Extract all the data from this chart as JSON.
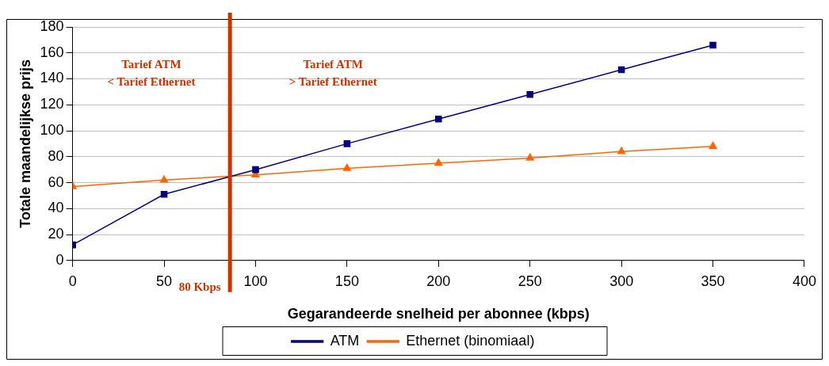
{
  "chart_data": {
    "type": "line",
    "xlabel": "Gegarandeerde snelheid per abonnee (kbps)",
    "ylabel": "Totale maandelijkse prijs",
    "x": [
      0,
      50,
      100,
      150,
      200,
      250,
      300,
      350
    ],
    "series": [
      {
        "name": "ATM",
        "color": "#000080",
        "marker": "square",
        "values": [
          12,
          51,
          70,
          90,
          109,
          128,
          147,
          166
        ]
      },
      {
        "name": "Ethernet (binomiaal)",
        "color": "#ff6600",
        "marker": "triangle",
        "values": [
          57,
          62,
          66,
          71,
          75,
          79,
          84,
          88
        ]
      }
    ],
    "xlim": [
      0,
      400
    ],
    "xticks": [
      0,
      50,
      100,
      150,
      200,
      250,
      300,
      350,
      400
    ],
    "ylim": [
      0,
      180
    ],
    "yticks": [
      0,
      20,
      40,
      60,
      80,
      100,
      120,
      140,
      160,
      180
    ],
    "grid": "y",
    "legend": "bottom",
    "line_style": "solid",
    "ref_lines": [
      {
        "axis": "x",
        "value": 86,
        "label": "80 Kbps",
        "color": "#cc3300"
      }
    ],
    "annotations": [
      "Tarief ATM\n< Tarief Ethernet",
      "Tarief ATM\n> Tarief Ethernet"
    ]
  }
}
